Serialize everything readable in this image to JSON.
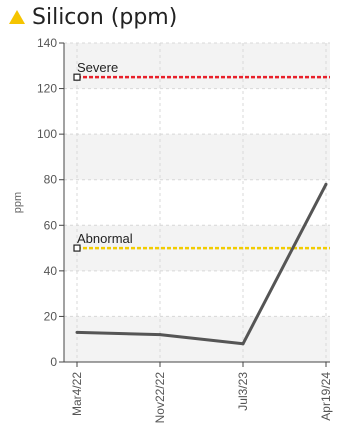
{
  "chart_data": {
    "type": "line",
    "title": "Silicon (ppm)",
    "title_icon": "warning-triangle-icon",
    "title_icon_color": "#f5c400",
    "ylabel": "ppm",
    "xlabel": "",
    "ylim": [
      0,
      140
    ],
    "yticks": [
      "0",
      "20",
      "40",
      "60",
      "80",
      "100",
      "120",
      "140"
    ],
    "x": [
      "Mar4/22",
      "Nov22/22",
      "Jul3/23",
      "Apr19/24"
    ],
    "series": [
      {
        "values": [
          13,
          12,
          8,
          78
        ],
        "color": "#555555"
      }
    ],
    "thresholds": [
      {
        "label": "Severe",
        "value": 125,
        "color": "#e8202a"
      },
      {
        "label": "Abnormal",
        "value": 50,
        "color": "#f2cc00"
      }
    ],
    "grid": true
  }
}
